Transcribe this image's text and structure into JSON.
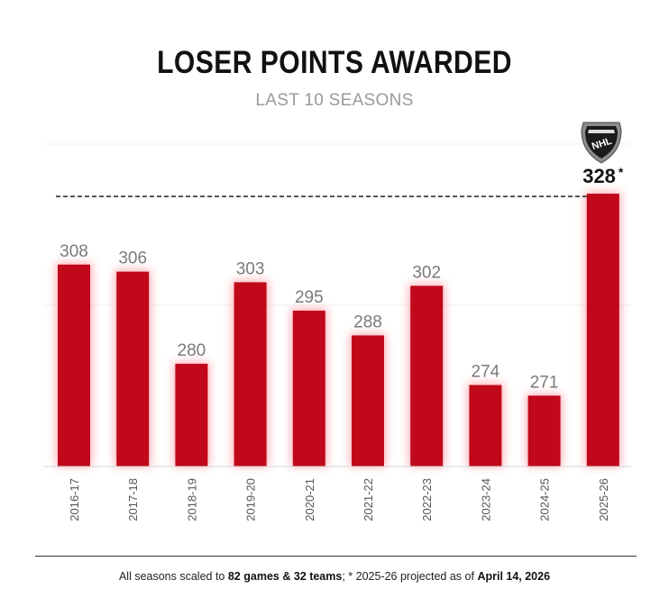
{
  "chart_data": {
    "type": "bar",
    "title": "LOSER POINTS AWARDED",
    "subtitle": "LAST 10 SEASONS",
    "categories": [
      "2016-17",
      "2017-18",
      "2018-19",
      "2019-20",
      "2020-21",
      "2021-22",
      "2022-23",
      "2023-24",
      "2024-25",
      "2025-26"
    ],
    "values": [
      308,
      306,
      280,
      303,
      295,
      288,
      302,
      274,
      271,
      328
    ],
    "highlight_index": 9,
    "highlight_marker": "*",
    "reference_line": {
      "value": 328,
      "style": "dashed"
    },
    "ylim": [
      251,
      342
    ],
    "xlabel": "",
    "ylabel": "",
    "logo": "NHL"
  },
  "footer": {
    "part1": "All seasons scaled to ",
    "bold1": "82 games & 32 teams",
    "part2": "; * 2025-26 projected as of ",
    "bold2": "April 14, 2026"
  },
  "colors": {
    "bar": "#c0081a",
    "glow": "#ff6b78",
    "label": "#7a7a7a",
    "highlight_label": "#111111"
  }
}
